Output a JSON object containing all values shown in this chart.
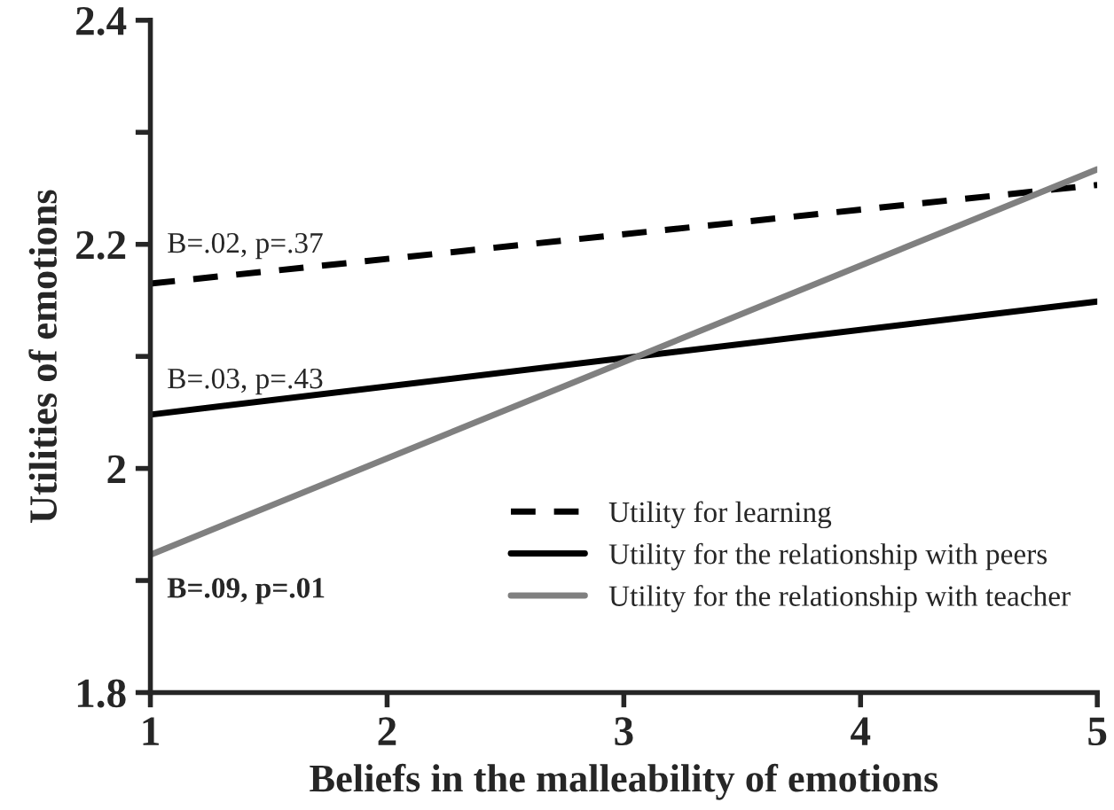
{
  "chart_data": {
    "type": "line",
    "xlabel": "Beliefs in the malleability of emotions",
    "ylabel": "Utilities of emotions",
    "x": [
      1,
      5
    ],
    "series": [
      {
        "name": "Utility for learning",
        "color": "#000000",
        "line_style": "dashed",
        "values": [
          2.165,
          2.253
        ]
      },
      {
        "name": "Utility for the relationship with peers",
        "color": "#000000",
        "line_style": "solid",
        "values": [
          2.048,
          2.149
        ]
      },
      {
        "name": "Utility for the relationship with teacher",
        "color": "#808080",
        "line_style": "solid",
        "values": [
          1.923,
          2.267
        ]
      }
    ],
    "xlim": [
      1,
      5
    ],
    "xticks": [
      1,
      2,
      3,
      4,
      5
    ],
    "ylim": [
      1.8,
      2.4
    ],
    "yticks": [
      1.8,
      {
        "value": 1.9,
        "label": null
      },
      2,
      {
        "value": 2.1,
        "label": null
      },
      2.2,
      {
        "value": 2.3,
        "label": null
      },
      2.4
    ],
    "annotations": [
      "B=.02, p=.37",
      "B=.03, p=.43",
      "B=.09, p=.01"
    ],
    "grid": false,
    "legend": "bottom right"
  }
}
